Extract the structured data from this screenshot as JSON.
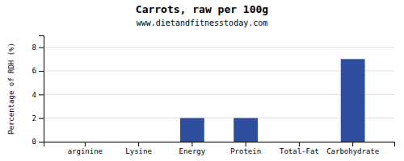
{
  "chart_data": {
    "type": "bar",
    "title": "Carrots, raw per 100g",
    "subtitle": "www.dietandfitnesstoday.com",
    "ylabel": "Percentage of RDH (%)",
    "categories": [
      "arginine",
      "Lysine",
      "Energy",
      "Protein",
      "Total-Fat",
      "Carbohydrate"
    ],
    "values": [
      0.0,
      0.0,
      2.0,
      2.0,
      0.0,
      7.0
    ],
    "color": "#2e4f9e",
    "ylim": [
      0,
      9
    ],
    "yticks": [
      0,
      2,
      4,
      6,
      8
    ],
    "grid": true
  }
}
